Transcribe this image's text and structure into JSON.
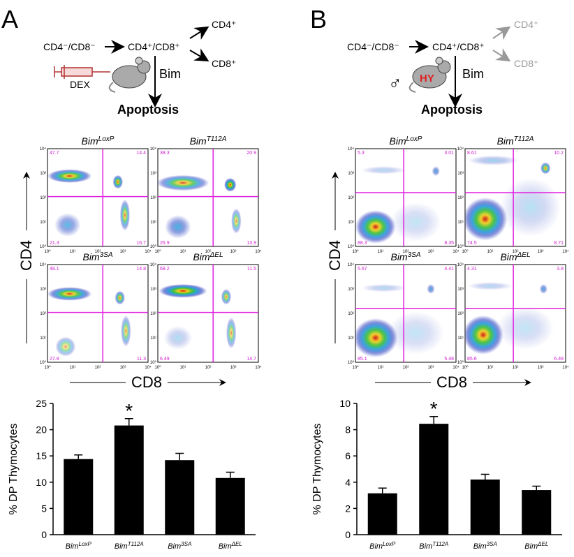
{
  "panels": [
    {
      "label": "A",
      "diagram": {
        "start": "CD4⁻/CD8⁻",
        "dp": "CD4⁺/CD8⁺",
        "out1": "CD4⁺",
        "out2": "CD8⁺",
        "treatment": "DEX",
        "mediator": "Bim",
        "outcome": "Apoptosis"
      },
      "flow": {
        "y_label": "CD4",
        "x_label": "CD8",
        "ticks": [
          "10⁰",
          "10¹",
          "10²",
          "10³",
          "10⁴"
        ],
        "plots": [
          {
            "title": {
              "base": "Bim",
              "sup": "LoxP"
            },
            "quadrants": [
              47.7,
              14.4,
              21.3,
              16.7
            ]
          },
          {
            "title": {
              "base": "Bim",
              "sup": "T112A"
            },
            "quadrants": [
              38.3,
              20.9,
              26.9,
              13.9
            ]
          },
          {
            "title": {
              "base": "Bim",
              "sup": "3SA"
            },
            "quadrants": [
              48.1,
              14.8,
              27.8,
              11.3
            ]
          },
          {
            "title": {
              "base": "Bim",
              "sup": "ΔEL"
            },
            "quadrants": [
              68.2,
              11.5,
              6.49,
              14.7
            ]
          }
        ]
      }
    },
    {
      "label": "B",
      "diagram": {
        "start": "CD4⁻/CD8⁻",
        "dp": "CD4⁺/CD8⁺",
        "out1": "CD4⁺",
        "out2": "CD8⁺",
        "sex": "♂",
        "treatment": "HY",
        "mediator": "Bim",
        "outcome": "Apoptosis"
      },
      "flow": {
        "y_label": "CD4",
        "x_label": "CD8",
        "ticks": [
          "10⁰",
          "10¹",
          "10²",
          "10³",
          "10⁴"
        ],
        "plots": [
          {
            "title": {
              "base": "Bim",
              "sup": "LoxP"
            },
            "quadrants": [
              5.3,
              3.01,
              88.3,
              8.35
            ]
          },
          {
            "title": {
              "base": "Bim",
              "sup": "T112A"
            },
            "quadrants": [
              8.61,
              10.2,
              74.5,
              8.71
            ]
          },
          {
            "title": {
              "base": "Bim",
              "sup": "3SA"
            },
            "quadrants": [
              5.67,
              4.41,
              85.1,
              5.48
            ]
          },
          {
            "title": {
              "base": "Bim",
              "sup": "ΔEL"
            },
            "quadrants": [
              4.31,
              3.8,
              85.6,
              6.49
            ]
          }
        ]
      }
    }
  ],
  "chart_data": [
    {
      "type": "bar",
      "y_label": "% DP Thymocytes",
      "categories": [
        {
          "base": "Bim",
          "sup": "LoxP"
        },
        {
          "base": "Bim",
          "sup": "T112A"
        },
        {
          "base": "Bim",
          "sup": "3SA"
        },
        {
          "base": "Bim",
          "sup": "ΔEL"
        }
      ],
      "values": [
        14.4,
        20.8,
        14.2,
        10.8
      ],
      "errors": [
        0.8,
        1.3,
        1.3,
        1.1
      ],
      "significance": [
        false,
        true,
        false,
        false
      ],
      "significance_mark": "*",
      "color": "#000000",
      "ylim": [
        0,
        25
      ],
      "yticks": [
        0,
        5,
        10,
        15,
        20,
        25
      ]
    },
    {
      "type": "bar",
      "y_label": "% DP Thymocytes",
      "categories": [
        {
          "base": "Bim",
          "sup": "LoxP"
        },
        {
          "base": "Bim",
          "sup": "T112A"
        },
        {
          "base": "Bim",
          "sup": "3SA"
        },
        {
          "base": "Bim",
          "sup": "ΔEL"
        }
      ],
      "values": [
        3.15,
        8.45,
        4.2,
        3.4
      ],
      "errors": [
        0.4,
        0.55,
        0.4,
        0.3
      ],
      "significance": [
        false,
        true,
        false,
        false
      ],
      "significance_mark": "*",
      "color": "#000000",
      "ylim": [
        0,
        10
      ],
      "yticks": [
        0,
        2,
        4,
        6,
        8,
        10
      ]
    }
  ]
}
